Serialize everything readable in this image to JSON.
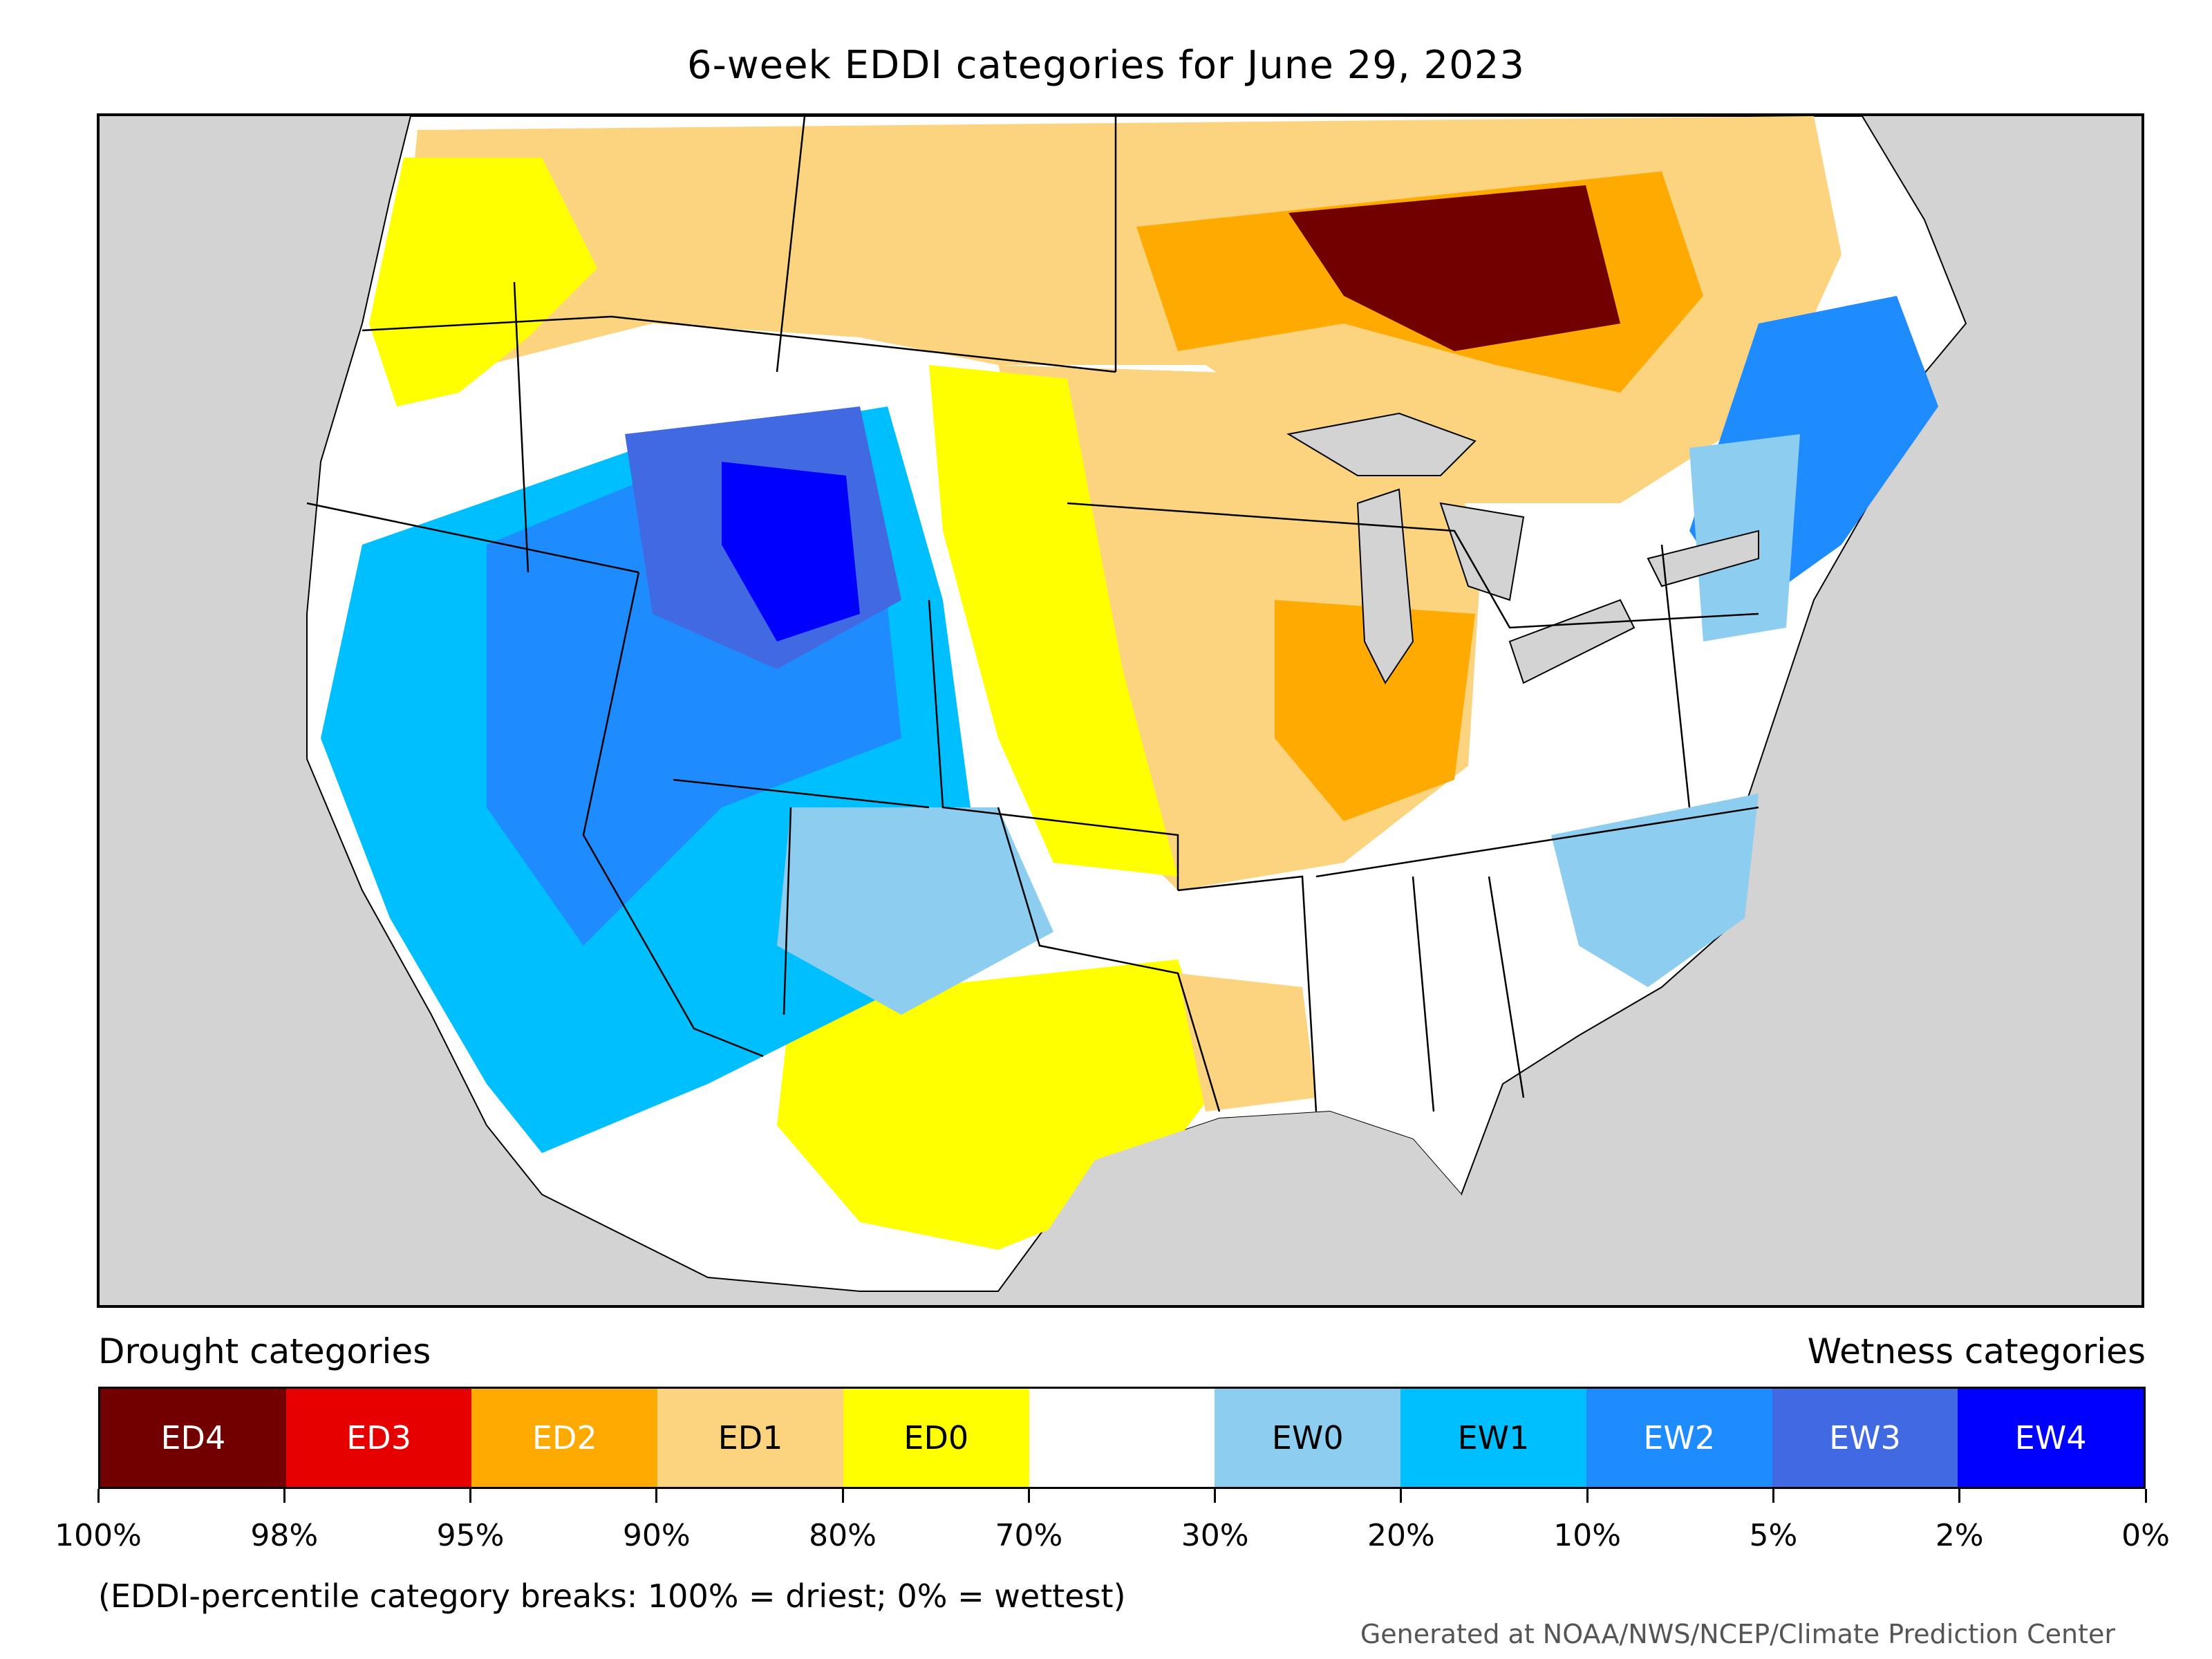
{
  "title": "6-week EDDI categories for June 29, 2023",
  "legend": {
    "left_heading": "Drought categories",
    "right_heading": "Wetness categories",
    "categories": [
      {
        "label": "ED4",
        "color": "#730000",
        "text_color": "#ffffff"
      },
      {
        "label": "ED3",
        "color": "#e60000",
        "text_color": "#ffffff"
      },
      {
        "label": "ED2",
        "color": "#ffaa00",
        "text_color": "#ffffff"
      },
      {
        "label": "ED1",
        "color": "#fcd37f",
        "text_color": "#000000"
      },
      {
        "label": "ED0",
        "color": "#ffff00",
        "text_color": "#000000"
      },
      {
        "label": "",
        "color": "#ffffff",
        "text_color": "#000000"
      },
      {
        "label": "EW0",
        "color": "#8ccdf0",
        "text_color": "#000000"
      },
      {
        "label": "EW1",
        "color": "#00bfff",
        "text_color": "#000000"
      },
      {
        "label": "EW2",
        "color": "#1e8cff",
        "text_color": "#ffffff"
      },
      {
        "label": "EW3",
        "color": "#4169e1",
        "text_color": "#ffffff"
      },
      {
        "label": "EW4",
        "color": "#0000ff",
        "text_color": "#ffffff"
      }
    ],
    "breaks": [
      "100%",
      "98%",
      "95%",
      "90%",
      "80%",
      "70%",
      "30%",
      "20%",
      "10%",
      "5%",
      "2%",
      "0%"
    ]
  },
  "note": "(EDDI-percentile category breaks: 100% = driest; 0% = wettest)",
  "credit": "Generated at NOAA/NWS/NCEP/Climate Prediction Center",
  "map_colors": {
    "background": "#d3d3d3",
    "land": "#ffffff",
    "borders": "#000000"
  }
}
